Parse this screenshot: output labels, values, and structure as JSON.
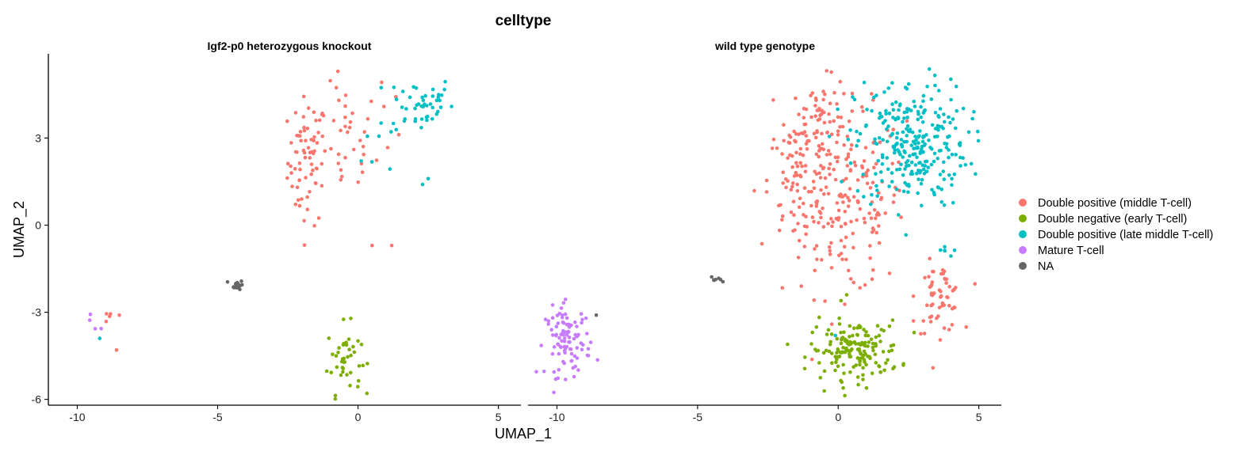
{
  "chart_data": {
    "type": "scatter",
    "title": "celltype",
    "xlabel": "UMAP_1",
    "ylabel": "UMAP_2",
    "xlim": [
      -11,
      5.8
    ],
    "ylim": [
      -6.2,
      5.9
    ],
    "xticks": [
      -10,
      -5,
      0,
      5
    ],
    "yticks": [
      -6,
      -3,
      0,
      3
    ],
    "grid": false,
    "legend_position": "right",
    "legend": [
      {
        "label": " Double positive (middle T-cell)",
        "color": "#F8766D"
      },
      {
        "label": "Double negative (early T-cell)",
        "color": "#7CAE00"
      },
      {
        "label": "Double positive (late middle T-cell)",
        "color": "#00BFC4"
      },
      {
        "label": "Mature T-cell",
        "color": "#C77CFF"
      },
      {
        "label": "NA",
        "color": "#666666"
      }
    ],
    "panels": [
      {
        "title": "Igf2-p0 heterozygous knockout",
        "clusters": [
          {
            "category": 0,
            "count": 70,
            "cx": -1.8,
            "cy": 2.2,
            "sx": 0.35,
            "sy": 1.1
          },
          {
            "category": 0,
            "count": 30,
            "cx": -0.4,
            "cy": 2.8,
            "sx": 0.5,
            "sy": 1.0
          },
          {
            "category": 0,
            "count": 8,
            "cx": 0.8,
            "cy": 3.8,
            "sx": 0.5,
            "sy": 0.8
          },
          {
            "category": 2,
            "count": 45,
            "cx": 2.2,
            "cy": 4.2,
            "sx": 0.6,
            "sy": 0.5
          },
          {
            "category": 2,
            "count": 8,
            "cx": 1.2,
            "cy": 2.8,
            "sx": 0.5,
            "sy": 0.7
          },
          {
            "category": 4,
            "count": 22,
            "cx": -4.3,
            "cy": -2.05,
            "sx": 0.1,
            "sy": 0.08
          },
          {
            "category": 1,
            "count": 42,
            "cx": -0.5,
            "cy": -4.6,
            "sx": 0.3,
            "sy": 0.6
          },
          {
            "category": 0,
            "count": 4,
            "cx": -8.9,
            "cy": -3.4,
            "sx": 0.35,
            "sy": 0.4
          },
          {
            "category": 3,
            "count": 4,
            "cx": -9.3,
            "cy": -3.3,
            "sx": 0.3,
            "sy": 0.3
          }
        ],
        "points": [
          {
            "x": 0.5,
            "y": -0.7,
            "category": 0
          },
          {
            "x": 1.2,
            "y": -0.7,
            "category": 0
          },
          {
            "x": 2.3,
            "y": 1.4,
            "category": 2
          },
          {
            "x": 2.5,
            "y": 1.6,
            "category": 2
          },
          {
            "x": -9.2,
            "y": -3.9,
            "category": 2
          },
          {
            "x": -8.5,
            "y": -3.1,
            "category": 0
          },
          {
            "x": -8.6,
            "y": -4.3,
            "category": 0
          }
        ]
      },
      {
        "title": "wild type genotype",
        "clusters": [
          {
            "category": 0,
            "count": 200,
            "cx": 0.2,
            "cy": 0.8,
            "sx": 1.1,
            "sy": 1.6
          },
          {
            "category": 0,
            "count": 60,
            "cx": -0.6,
            "cy": 3.6,
            "sx": 0.6,
            "sy": 0.7
          },
          {
            "category": 0,
            "count": 60,
            "cx": 3.6,
            "cy": -2.5,
            "sx": 0.4,
            "sy": 0.6
          },
          {
            "category": 0,
            "count": 60,
            "cx": -1.5,
            "cy": 1.5,
            "sx": 0.5,
            "sy": 1.0
          },
          {
            "category": 2,
            "count": 280,
            "cx": 2.6,
            "cy": 2.8,
            "sx": 1.0,
            "sy": 1.1
          },
          {
            "category": 2,
            "count": 6,
            "cx": 4.0,
            "cy": -0.9,
            "sx": 0.25,
            "sy": 0.1
          },
          {
            "category": 1,
            "count": 160,
            "cx": 0.6,
            "cy": -4.3,
            "sx": 0.8,
            "sy": 0.5
          },
          {
            "category": 3,
            "count": 100,
            "cx": -9.6,
            "cy": -4.0,
            "sx": 0.4,
            "sy": 0.6
          },
          {
            "category": 4,
            "count": 6,
            "cx": -4.4,
            "cy": -1.85,
            "sx": 0.08,
            "sy": 0.08
          }
        ],
        "points": [
          {
            "x": -8.6,
            "y": -3.1,
            "category": 4
          },
          {
            "x": -4.1,
            "y": -1.95,
            "category": 4
          },
          {
            "x": 0.3,
            "y": -2.4,
            "category": 1
          },
          {
            "x": 0.1,
            "y": -2.6,
            "category": 1
          },
          {
            "x": -0.1,
            "y": -3.8,
            "category": 2
          }
        ]
      }
    ]
  }
}
